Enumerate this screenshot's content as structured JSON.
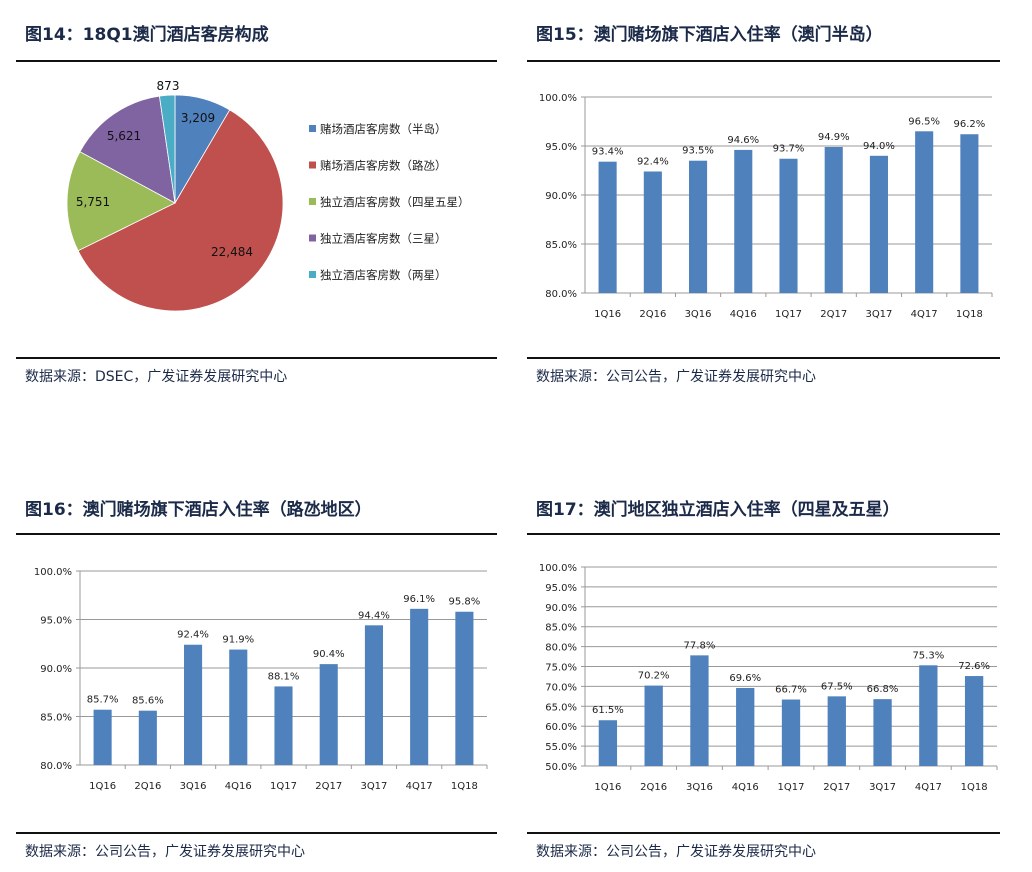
{
  "figures": [
    {
      "title": "图14：18Q1澳门酒店客房构成",
      "source": "数据来源：DSEC，广发证券发展研究中心"
    },
    {
      "title": "图15：澳门赌场旗下酒店入住率（澳门半岛）",
      "source": "数据来源：公司公告，广发证券发展研究中心"
    },
    {
      "title": "图16：澳门赌场旗下酒店入住率（路氹地区）",
      "source": "数据来源：公司公告，广发证券发展研究中心"
    },
    {
      "title": "图17：澳门地区独立酒店入住率（四星及五星）",
      "source": "数据来源：公司公告，广发证券发展研究中心"
    }
  ],
  "chart_data": [
    {
      "type": "pie",
      "categories": [
        "赌场酒店客房数（半岛）",
        "赌场酒店客房数（路氹）",
        "独立酒店客房数（四星五星）",
        "独立酒店客房数（三星）",
        "独立酒店客房数（两星）"
      ],
      "values": [
        3209,
        22484,
        5751,
        5621,
        873
      ],
      "labels": [
        "3,209",
        "22,484",
        "5,751",
        "5,621",
        "873"
      ],
      "colors": [
        "#4f81bd",
        "#c0504d",
        "#9bbb59",
        "#8064a2",
        "#4bacc6"
      ],
      "legend": "right"
    },
    {
      "type": "bar",
      "categories": [
        "1Q16",
        "2Q16",
        "3Q16",
        "4Q16",
        "1Q17",
        "2Q17",
        "3Q17",
        "4Q17",
        "1Q18"
      ],
      "values": [
        93.4,
        92.4,
        93.5,
        94.6,
        93.7,
        94.9,
        94.0,
        96.5,
        96.2
      ],
      "ylim": [
        80,
        100
      ],
      "ystep": 5,
      "grid": true,
      "color": "#4f81bd"
    },
    {
      "type": "bar",
      "categories": [
        "1Q16",
        "2Q16",
        "3Q16",
        "4Q16",
        "1Q17",
        "2Q17",
        "3Q17",
        "4Q17",
        "1Q18"
      ],
      "values": [
        85.7,
        85.6,
        92.4,
        91.9,
        88.1,
        90.4,
        94.4,
        96.1,
        95.8
      ],
      "ylim": [
        80,
        100
      ],
      "ystep": 5,
      "grid": true,
      "color": "#4f81bd"
    },
    {
      "type": "bar",
      "categories": [
        "1Q16",
        "2Q16",
        "3Q16",
        "4Q16",
        "1Q17",
        "2Q17",
        "3Q17",
        "4Q17",
        "1Q18"
      ],
      "values": [
        61.5,
        70.2,
        77.8,
        69.6,
        66.7,
        67.5,
        66.8,
        75.3,
        72.6
      ],
      "ylim": [
        50,
        100
      ],
      "ystep": 5,
      "grid": true,
      "color": "#4f81bd"
    }
  ]
}
